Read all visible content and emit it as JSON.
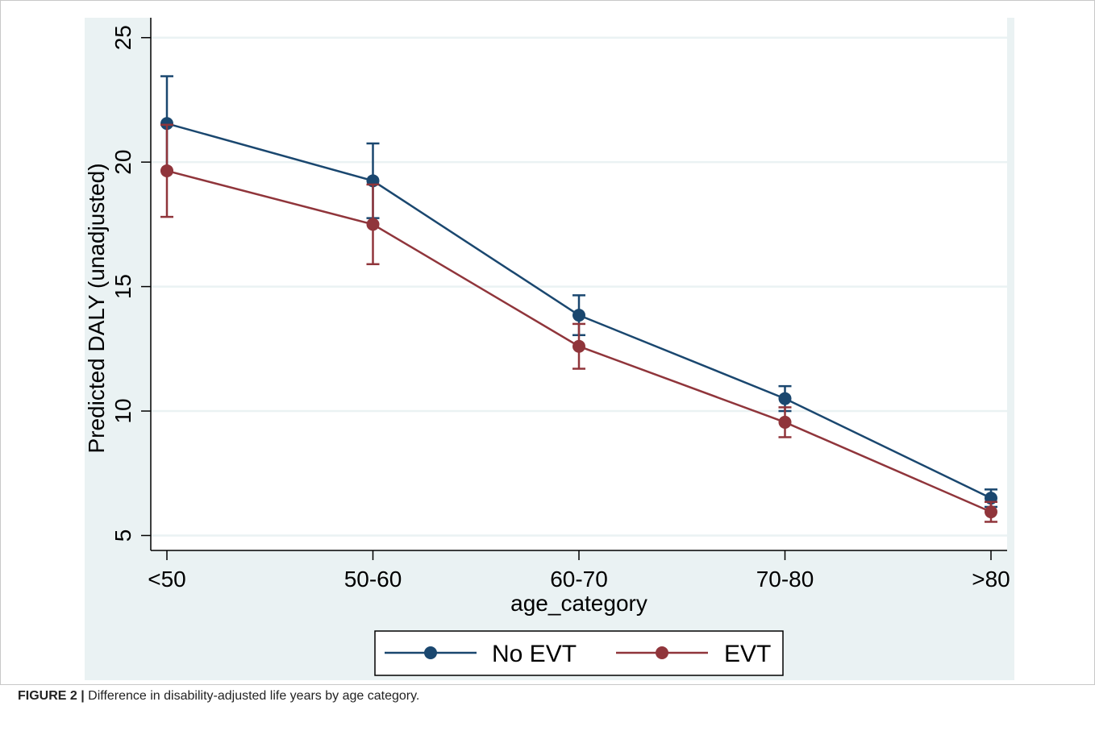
{
  "figure": {
    "label": "FIGURE 2 |",
    "caption": "Difference in disability-adjusted life years by age category."
  },
  "colors": {
    "panel_bg": "#eaf2f3",
    "plot_bg": "#ffffff",
    "grid": "#eaf2f3",
    "axis": "#000000",
    "frame_border": "#c8c8c8"
  },
  "chart_data": {
    "type": "line",
    "title": "",
    "xlabel": "age_category",
    "ylabel": "Predicted DALY (unadjusted)",
    "categories": [
      "<50",
      "50-60",
      "60-70",
      "70-80",
      ">80"
    ],
    "ylim": [
      4.4,
      25.8
    ],
    "yticks": [
      5,
      10,
      15,
      20,
      25
    ],
    "grid": true,
    "legend_position": "bottom",
    "series": [
      {
        "name": "No EVT",
        "color": "#1a476f",
        "values": [
          21.55,
          19.25,
          13.85,
          10.5,
          6.5
        ],
        "ci_low": [
          19.65,
          17.75,
          13.05,
          10.0,
          6.15
        ],
        "ci_high": [
          23.45,
          20.75,
          14.65,
          11.0,
          6.85
        ]
      },
      {
        "name": "EVT",
        "color": "#90353b",
        "values": [
          19.65,
          17.5,
          12.6,
          9.55,
          5.95
        ],
        "ci_low": [
          17.8,
          15.9,
          11.7,
          8.95,
          5.55
        ],
        "ci_high": [
          21.5,
          19.1,
          13.5,
          10.15,
          6.35
        ]
      }
    ]
  }
}
